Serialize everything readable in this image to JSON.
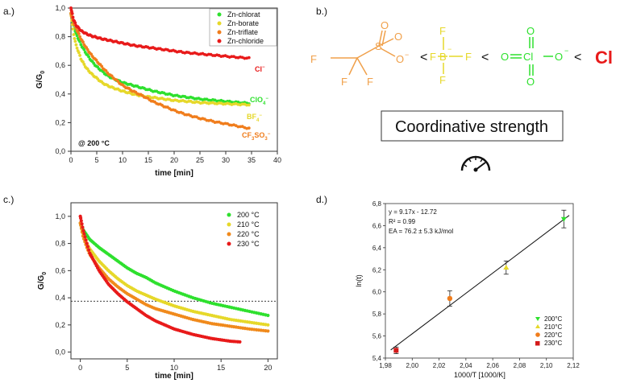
{
  "panels": {
    "a": "a.)",
    "b": "b.)",
    "c": "c.)",
    "d": "d.)"
  },
  "colors": {
    "chlorate": "#2ee02e",
    "borate": "#e6d82a",
    "triflate": "#f07d1c",
    "chloride": "#e81a1a",
    "t200": "#2ee02e",
    "t210": "#e6d82a",
    "t220": "#f08a1c",
    "t230": "#e81a1a",
    "d200": "#2ee02e",
    "d210": "#e6d82a",
    "d220": "#f07d1c",
    "d230": "#d41a1a"
  },
  "scheme": {
    "triflate_atoms": {
      "f1": "F",
      "f2": "F",
      "f3": "F",
      "s": "S",
      "o1": "O",
      "o2": "O",
      "o3": "O"
    },
    "borate_atoms": {
      "f1": "F",
      "f2": "F",
      "f3": "F",
      "f4": "F",
      "b": "B"
    },
    "perchlorate_atoms": {
      "o1": "O",
      "o2": "O",
      "o3": "O",
      "o4": "O",
      "cl": "Cl"
    },
    "chloride": "Cl",
    "less_than": "<",
    "minus": "−",
    "label": "Coordinative strength",
    "gauge_icon": "speedometer-icon"
  },
  "chart_data": [
    {
      "id": "a",
      "type": "line",
      "xlabel": "time [min]",
      "ylabel": "G/G0",
      "xlim": [
        0,
        40
      ],
      "ylim": [
        0.0,
        1.0
      ],
      "xticks": [
        "0",
        "5",
        "10",
        "15",
        "20",
        "25",
        "30",
        "35",
        "40"
      ],
      "yticks": [
        "0,0",
        "0,2",
        "0,4",
        "0,6",
        "0,8",
        "1,0"
      ],
      "annotation": "@ 200 °C",
      "series": [
        {
          "name": "Zn-chlorat",
          "ion": "ClO4−",
          "color_key": "chlorate",
          "x": [
            0,
            0.5,
            1,
            2,
            3,
            4,
            5,
            6,
            7,
            8,
            10,
            12,
            14,
            16,
            18,
            20,
            22,
            25,
            28,
            31,
            34.5
          ],
          "y": [
            0.96,
            0.88,
            0.82,
            0.74,
            0.68,
            0.63,
            0.59,
            0.56,
            0.53,
            0.51,
            0.48,
            0.46,
            0.44,
            0.42,
            0.405,
            0.39,
            0.38,
            0.365,
            0.355,
            0.345,
            0.335
          ]
        },
        {
          "name": "Zn-borate",
          "ion": "BF4−",
          "color_key": "borate",
          "x": [
            0,
            0.5,
            1,
            2,
            3,
            4,
            5,
            6,
            7,
            8,
            10,
            12,
            14,
            16,
            18,
            20,
            22,
            25,
            28,
            31,
            34.5
          ],
          "y": [
            0.96,
            0.82,
            0.74,
            0.64,
            0.58,
            0.54,
            0.51,
            0.48,
            0.46,
            0.445,
            0.42,
            0.4,
            0.385,
            0.375,
            0.365,
            0.355,
            0.35,
            0.34,
            0.335,
            0.33,
            0.325
          ]
        },
        {
          "name": "Zn-triflate",
          "ion": "CF3SO3−",
          "color_key": "triflate",
          "x": [
            0,
            0.5,
            1,
            2,
            3,
            4,
            5,
            6,
            7,
            8,
            10,
            12,
            14,
            16,
            18,
            20,
            22,
            25,
            28,
            31,
            34.5
          ],
          "y": [
            0.96,
            0.9,
            0.86,
            0.78,
            0.72,
            0.67,
            0.63,
            0.59,
            0.55,
            0.52,
            0.46,
            0.42,
            0.385,
            0.345,
            0.315,
            0.285,
            0.26,
            0.23,
            0.205,
            0.185,
            0.16
          ]
        },
        {
          "name": "Zn-chloride",
          "ion": "Cl−",
          "color_key": "chloride",
          "x": [
            0,
            0.5,
            1,
            2,
            3,
            4,
            5,
            6,
            8,
            10,
            12,
            14,
            16,
            18,
            20,
            22,
            25,
            28,
            31,
            34.5
          ],
          "y": [
            1.0,
            0.92,
            0.88,
            0.84,
            0.82,
            0.805,
            0.795,
            0.785,
            0.77,
            0.755,
            0.74,
            0.73,
            0.72,
            0.71,
            0.7,
            0.69,
            0.68,
            0.67,
            0.66,
            0.65
          ]
        }
      ]
    },
    {
      "id": "c",
      "type": "line",
      "xlabel": "time [min]",
      "ylabel": "G/G0",
      "xlim": [
        -1,
        21
      ],
      "ylim": [
        -0.05,
        1.1
      ],
      "xticks": [
        "0",
        "5",
        "10",
        "15",
        "20"
      ],
      "yticks": [
        "0,0",
        "0,2",
        "0,4",
        "0,6",
        "0,8",
        "1,0"
      ],
      "hline": 0.375,
      "series": [
        {
          "name": "200 °C",
          "color_key": "t200",
          "x": [
            0,
            0.3,
            0.7,
            1,
            2,
            3,
            4,
            5,
            6,
            7,
            8,
            10,
            12,
            14,
            16,
            18,
            20
          ],
          "y": [
            0.95,
            0.9,
            0.86,
            0.83,
            0.77,
            0.72,
            0.67,
            0.62,
            0.58,
            0.55,
            0.51,
            0.45,
            0.4,
            0.36,
            0.33,
            0.3,
            0.27
          ]
        },
        {
          "name": "210 °C",
          "color_key": "t210",
          "x": [
            0,
            0.3,
            0.7,
            1,
            2,
            3,
            4,
            5,
            6,
            7,
            8,
            10,
            12,
            14,
            16,
            18,
            20
          ],
          "y": [
            0.95,
            0.87,
            0.8,
            0.76,
            0.67,
            0.6,
            0.54,
            0.49,
            0.45,
            0.42,
            0.39,
            0.34,
            0.3,
            0.27,
            0.24,
            0.22,
            0.2
          ]
        },
        {
          "name": "220 °C",
          "color_key": "t220",
          "x": [
            0,
            0.3,
            0.7,
            1,
            2,
            3,
            4,
            5,
            6,
            7,
            8,
            10,
            12,
            14,
            16,
            18,
            20
          ],
          "y": [
            0.95,
            0.85,
            0.77,
            0.72,
            0.62,
            0.54,
            0.48,
            0.43,
            0.39,
            0.35,
            0.32,
            0.28,
            0.24,
            0.21,
            0.19,
            0.17,
            0.155
          ]
        },
        {
          "name": "230 °C",
          "color_key": "t230",
          "x": [
            0,
            0.3,
            0.7,
            1,
            2,
            3,
            4,
            5,
            6,
            7,
            8,
            9,
            10,
            11,
            12,
            13,
            14,
            15,
            16,
            17
          ],
          "y": [
            1.0,
            0.9,
            0.8,
            0.73,
            0.6,
            0.5,
            0.43,
            0.37,
            0.32,
            0.27,
            0.23,
            0.2,
            0.17,
            0.15,
            0.13,
            0.115,
            0.1,
            0.09,
            0.08,
            0.075
          ]
        }
      ]
    },
    {
      "id": "d",
      "type": "scatter",
      "xlabel": "1000/T [1000/K]",
      "ylabel": "ln(t)",
      "xlim": [
        1.98,
        2.12
      ],
      "ylim": [
        5.4,
        6.8
      ],
      "xticks": [
        "1,98",
        "2,00",
        "2,02",
        "2,04",
        "2,06",
        "2,08",
        "2,10",
        "2,12"
      ],
      "yticks": [
        "5,4",
        "5,6",
        "5,8",
        "6,0",
        "6,2",
        "6,4",
        "6,6",
        "6,8"
      ],
      "fit": {
        "equation": "y = 9.17x - 12.72",
        "r2": "R² = 0.99",
        "ea": "EA = 76.2 ± 5.3 kJ/mol",
        "slope": 9.17,
        "intercept": -12.72
      },
      "points": [
        {
          "name": "200°C",
          "x": 2.113,
          "y": 6.66,
          "err": 0.08,
          "color_key": "d200"
        },
        {
          "name": "210°C",
          "x": 2.07,
          "y": 6.22,
          "err": 0.06,
          "color_key": "d210"
        },
        {
          "name": "220°C",
          "x": 2.028,
          "y": 5.94,
          "err": 0.07,
          "color_key": "d220"
        },
        {
          "name": "230°C",
          "x": 1.988,
          "y": 5.47,
          "err": 0.03,
          "color_key": "d230"
        }
      ]
    }
  ]
}
